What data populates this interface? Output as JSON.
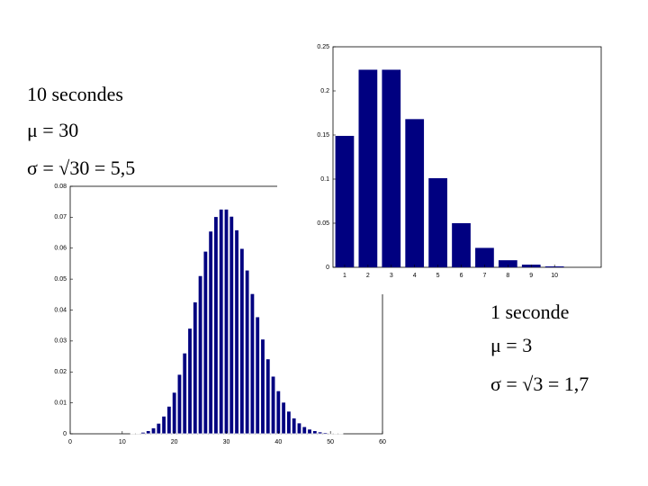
{
  "chart_data": [
    {
      "type": "bar",
      "color": "#000080",
      "x": [
        1,
        2,
        3,
        4,
        5,
        6,
        7,
        8,
        9,
        10
      ],
      "values": [
        0.149,
        0.224,
        0.224,
        0.168,
        0.101,
        0.05,
        0.022,
        0.008,
        0.003,
        0.001
      ],
      "xlim": [
        0.5,
        12
      ],
      "xticks": [
        1,
        2,
        3,
        4,
        5,
        6,
        7,
        8,
        9,
        10
      ],
      "ylim": [
        0,
        0.25
      ],
      "yticks": [
        0,
        0.05,
        0.1,
        0.15,
        0.2,
        0.25
      ],
      "grid": false,
      "annotations": [
        "1 seconde",
        "μ = 3",
        "σ = √3 = 1,7"
      ]
    },
    {
      "type": "bar",
      "color": "#000080",
      "x": [
        10,
        11,
        12,
        13,
        14,
        15,
        16,
        17,
        18,
        19,
        20,
        21,
        22,
        23,
        24,
        25,
        26,
        27,
        28,
        29,
        30,
        31,
        32,
        33,
        34,
        35,
        36,
        37,
        38,
        39,
        40,
        41,
        42,
        43,
        44,
        45,
        46,
        47,
        48,
        49,
        50,
        51,
        52
      ],
      "values": [
        0.0,
        0.0,
        0.0001,
        0.0002,
        0.0005,
        0.001,
        0.0019,
        0.0034,
        0.0057,
        0.0089,
        0.0134,
        0.0192,
        0.0261,
        0.0341,
        0.0426,
        0.0511,
        0.059,
        0.0655,
        0.0702,
        0.0726,
        0.0726,
        0.0703,
        0.0659,
        0.0599,
        0.0529,
        0.0453,
        0.0378,
        0.0306,
        0.0242,
        0.0186,
        0.0139,
        0.0102,
        0.0073,
        0.0051,
        0.0035,
        0.0023,
        0.0015,
        0.001,
        0.0006,
        0.0004,
        0.0002,
        0.0001,
        0.0001
      ],
      "xlim": [
        0,
        60
      ],
      "xticks": [
        0,
        10,
        20,
        30,
        40,
        50,
        60
      ],
      "ylim": [
        0,
        0.08
      ],
      "yticks": [
        0,
        0.01,
        0.02,
        0.03,
        0.04,
        0.05,
        0.06,
        0.07,
        0.08
      ],
      "grid": false,
      "annotations": [
        "10 secondes",
        "μ = 30",
        "σ = √30 = 5,5"
      ]
    }
  ]
}
